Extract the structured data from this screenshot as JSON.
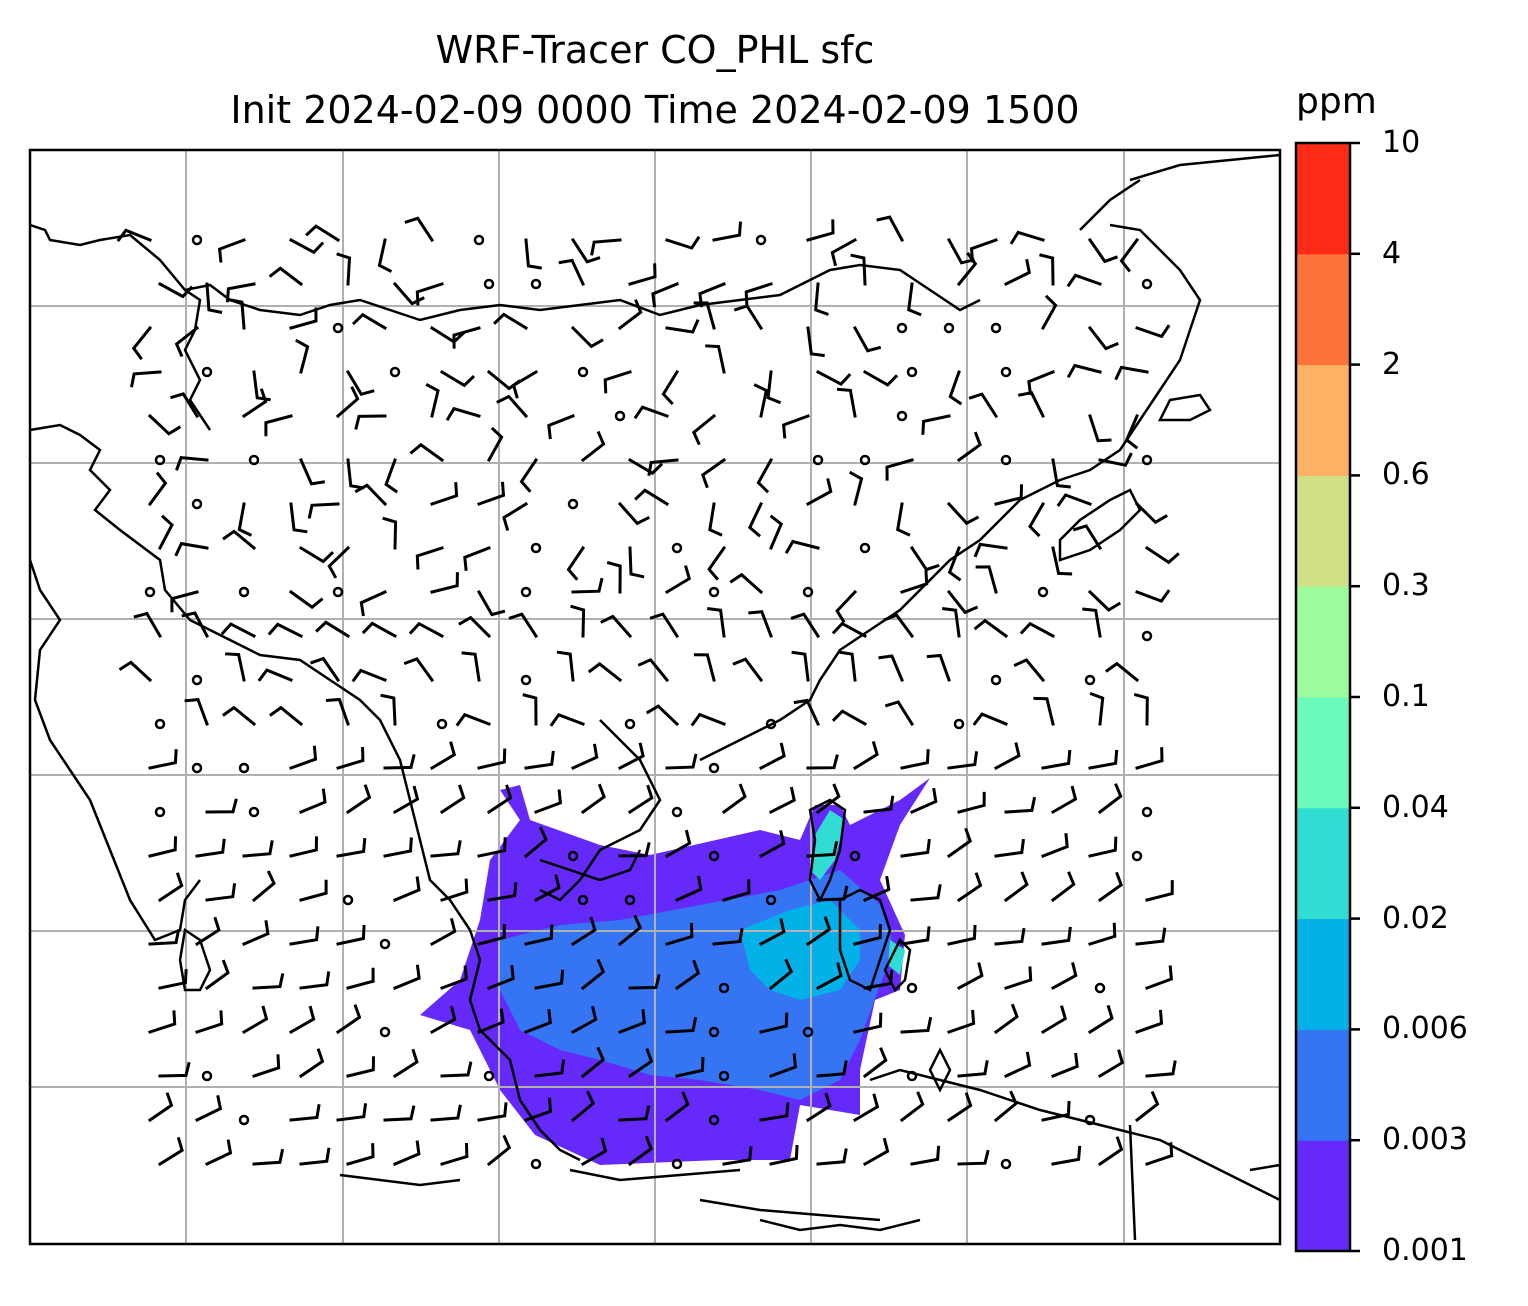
{
  "title": {
    "line1": "WRF-Tracer CO_PHL sfc",
    "line2": "Init 2024-02-09 0000 Time 2024-02-09 1500"
  },
  "colorbar": {
    "unit": "ppm",
    "levels": [
      "0.001",
      "0.003",
      "0.006",
      "0.02",
      "0.04",
      "0.1",
      "0.3",
      "0.6",
      "2",
      "4",
      "10"
    ],
    "colors": [
      "#652afa",
      "#3574f3",
      "#03b1e9",
      "#31dcd3",
      "#6bfbbd",
      "#9cfb9a",
      "#cfe087",
      "#feb164",
      "#fe723c",
      "#fe2b17"
    ]
  },
  "map": {
    "type": "filled-contour with wind barbs",
    "variable": "CO tracer (CO_PHL), surface",
    "gridlines": true,
    "colors": {
      "coast": "#000000",
      "grid": "#b0b0b0",
      "barb": "#000000"
    }
  }
}
